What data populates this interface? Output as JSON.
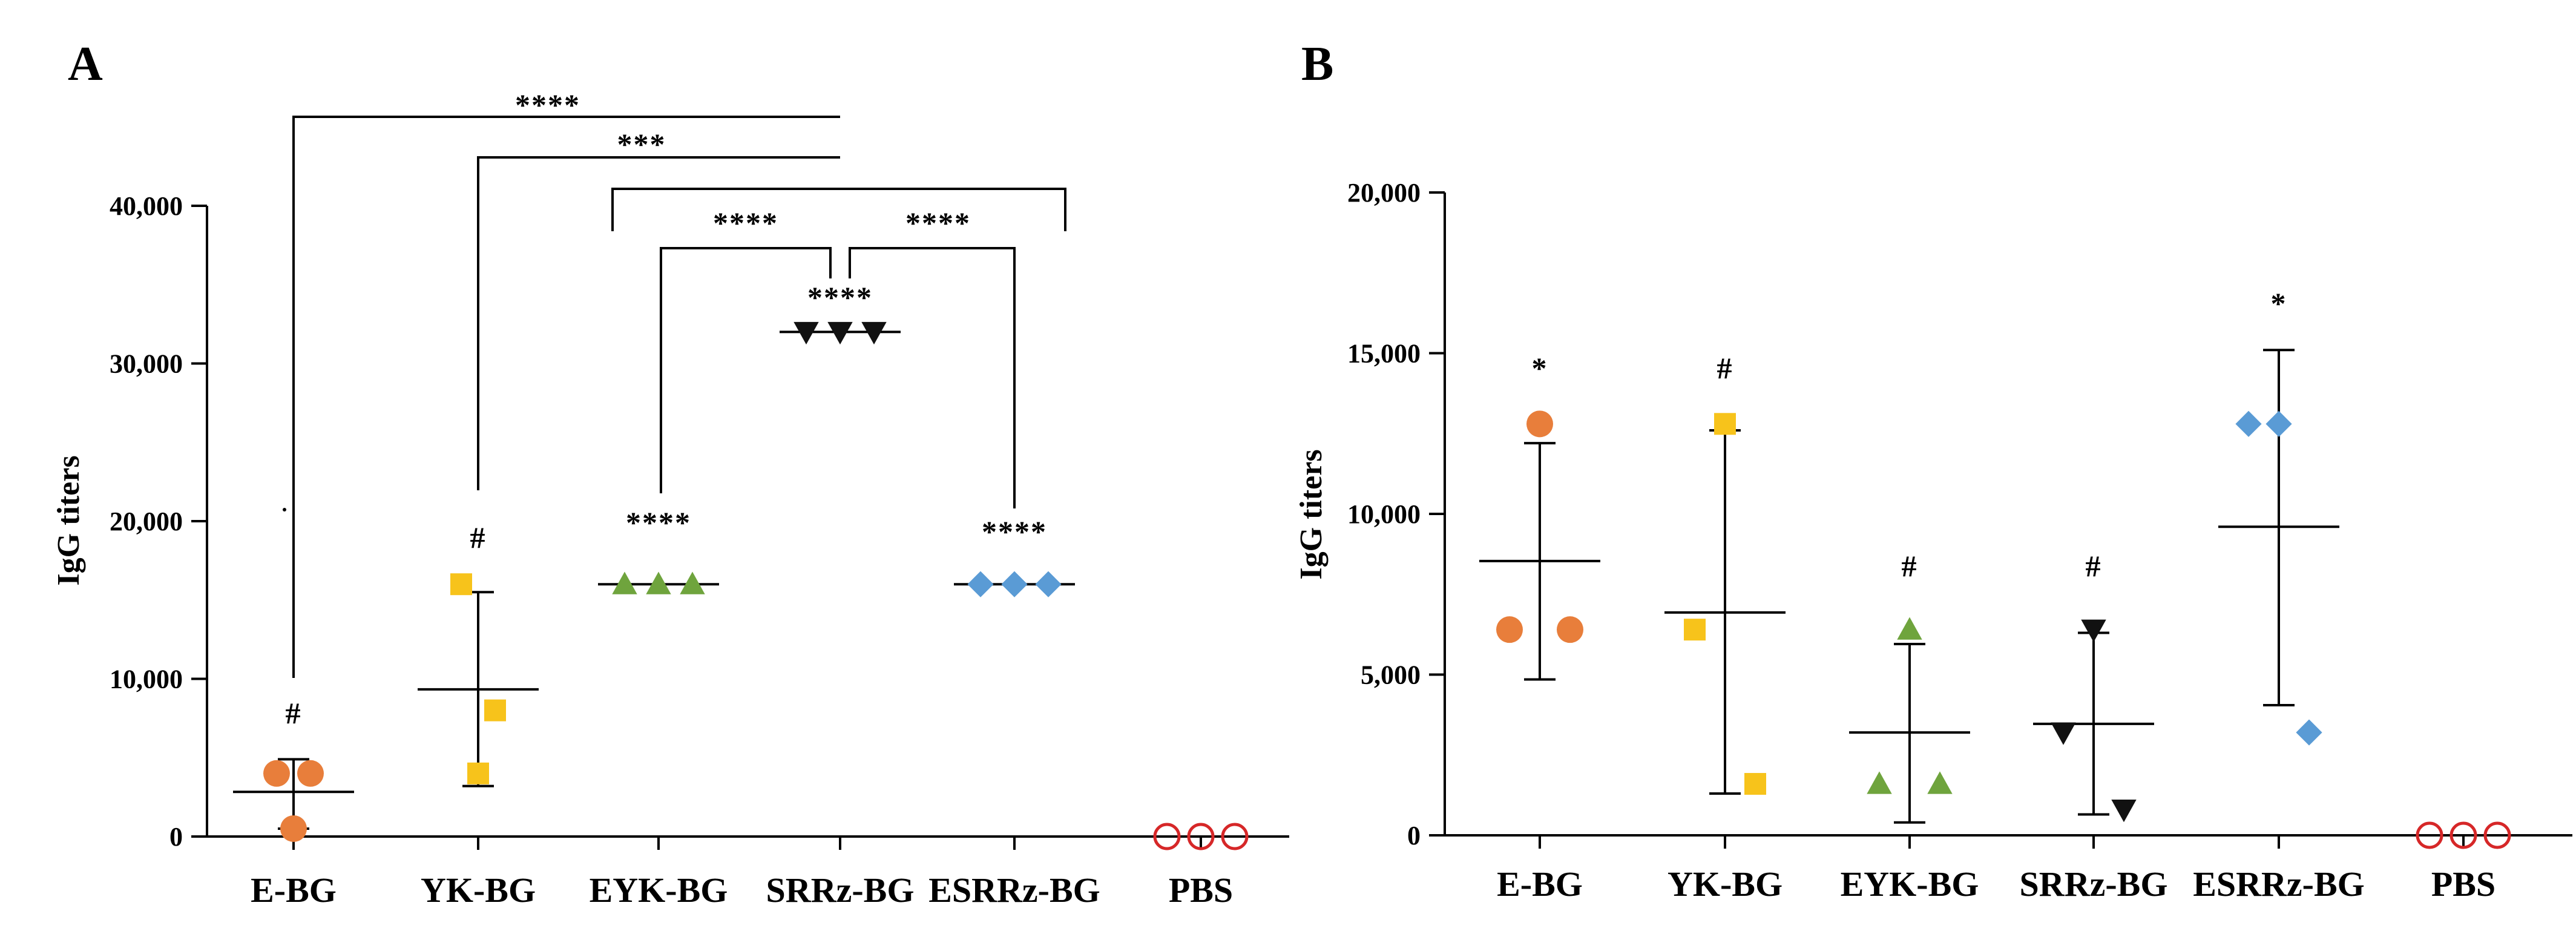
{
  "chart_data": [
    {
      "panel": "A",
      "type": "scatter",
      "ylabel": "IgG titers",
      "ylim": [
        0,
        40000
      ],
      "yticks": [
        0,
        10000,
        20000,
        30000,
        40000
      ],
      "ytick_labels": [
        "0",
        "10,000",
        "20,000",
        "30,000",
        "40,000"
      ],
      "categories": [
        "E-BG",
        "YK-BG",
        "EYK-BG",
        "SRRz-BG",
        "ESRRz-BG",
        "PBS"
      ],
      "series": [
        {
          "name": "E-BG",
          "marker": "circle",
          "color": "#E87E3B",
          "values": [
            4000,
            4000,
            500
          ],
          "mean": 2833,
          "sd_low": 500,
          "sd_high": 4900,
          "annotation": "#"
        },
        {
          "name": "YK-BG",
          "marker": "square",
          "color": "#F7C31B",
          "values": [
            16000,
            8000,
            4000
          ],
          "mean": 9333,
          "sd_low": 3200,
          "sd_high": 15500,
          "annotation": "#"
        },
        {
          "name": "EYK-BG",
          "marker": "triangle-up",
          "color": "#6FA43D",
          "values": [
            16000,
            16000,
            16000
          ],
          "mean": 16000,
          "annotation": "****"
        },
        {
          "name": "SRRz-BG",
          "marker": "triangle-down",
          "color": "#111111",
          "values": [
            32000,
            32000,
            32000
          ],
          "mean": 32000,
          "annotation": "****"
        },
        {
          "name": "ESRRz-BG",
          "marker": "diamond",
          "color": "#5A9BD5",
          "values": [
            16000,
            16000,
            16000
          ],
          "mean": 16000,
          "annotation": "****"
        },
        {
          "name": "PBS",
          "marker": "open-circle",
          "color": "#D62728",
          "values": [
            0,
            0,
            0
          ],
          "mean": 0
        }
      ],
      "comparisons": [
        {
          "from": "E-BG",
          "to": "SRRz-BG",
          "label": "****"
        },
        {
          "from": "YK-BG",
          "to": "SRRz-BG",
          "label": "***"
        },
        {
          "from": "EYK-BG",
          "to": "ESRRz-BG",
          "label": ""
        },
        {
          "from": "EYK-BG",
          "to": "SRRz-BG",
          "label": "****"
        },
        {
          "from": "SRRz-BG",
          "to": "ESRRz-BG",
          "label": "****"
        }
      ]
    },
    {
      "panel": "B",
      "type": "scatter",
      "ylabel": "IgG titers",
      "ylim": [
        0,
        20000
      ],
      "yticks": [
        0,
        5000,
        10000,
        15000,
        20000
      ],
      "ytick_labels": [
        "0",
        "5,000",
        "10,000",
        "15,000",
        "20,000"
      ],
      "categories": [
        "E-BG",
        "YK-BG",
        "EYK-BG",
        "SRRz-BG",
        "ESRRz-BG",
        "PBS"
      ],
      "series": [
        {
          "name": "E-BG",
          "marker": "circle",
          "color": "#E87E3B",
          "values": [
            12800,
            6400,
            6400
          ],
          "mean": 8533,
          "sd_low": 4850,
          "sd_high": 12200,
          "annotation": "*"
        },
        {
          "name": "YK-BG",
          "marker": "square",
          "color": "#F7C31B",
          "values": [
            12800,
            6400,
            1600
          ],
          "mean": 6933,
          "sd_low": 1300,
          "sd_high": 12600,
          "annotation": "#"
        },
        {
          "name": "EYK-BG",
          "marker": "triangle-up",
          "color": "#6FA43D",
          "values": [
            6400,
            1600,
            1600
          ],
          "mean": 3200,
          "sd_low": 400,
          "sd_high": 5950,
          "annotation": "#"
        },
        {
          "name": "SRRz-BG",
          "marker": "triangle-down",
          "color": "#111111",
          "values": [
            6400,
            3200,
            800
          ],
          "mean": 3467,
          "sd_low": 650,
          "sd_high": 6300,
          "annotation": "#"
        },
        {
          "name": "ESRRz-BG",
          "marker": "diamond",
          "color": "#5A9BD5",
          "values": [
            12800,
            12800,
            3200
          ],
          "mean": 9600,
          "sd_low": 4050,
          "sd_high": 15100,
          "annotation": "*"
        },
        {
          "name": "PBS",
          "marker": "open-circle",
          "color": "#D62728",
          "values": [
            0,
            0,
            0
          ],
          "mean": 0
        }
      ]
    }
  ]
}
